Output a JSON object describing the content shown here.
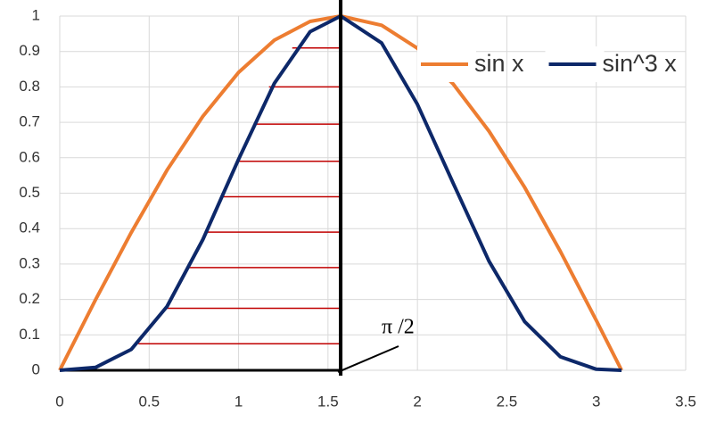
{
  "chart_data": {
    "type": "line",
    "x": [
      0,
      0.2,
      0.4,
      0.6,
      0.8,
      1.0,
      1.2,
      1.4,
      1.5708,
      1.8,
      2.0,
      2.2,
      2.4,
      2.6,
      2.8,
      3.0,
      3.1416
    ],
    "series": [
      {
        "name": "sin x",
        "color": "#ed7d31",
        "values": [
          0,
          0.199,
          0.389,
          0.565,
          0.717,
          0.841,
          0.932,
          0.985,
          1.0,
          0.974,
          0.909,
          0.808,
          0.675,
          0.516,
          0.335,
          0.141,
          0
        ]
      },
      {
        "name": "sin^3 x",
        "color": "#0d2869",
        "values": [
          0,
          0.008,
          0.059,
          0.18,
          0.369,
          0.596,
          0.81,
          0.956,
          1.0,
          0.924,
          0.751,
          0.528,
          0.308,
          0.137,
          0.038,
          0.003,
          0
        ]
      }
    ],
    "xlim": [
      0,
      3.5
    ],
    "xticks": [
      0,
      0.5,
      1,
      1.5,
      2,
      2.5,
      3,
      3.5
    ],
    "ylim": [
      0,
      1
    ],
    "yticks": [
      0,
      0.1,
      0.2,
      0.3,
      0.4,
      0.5,
      0.6,
      0.7,
      0.8,
      0.9,
      1
    ],
    "grid": true,
    "legend": "upper right",
    "vline": {
      "x": 1.5708,
      "color": "#000000"
    },
    "hlines": {
      "color": "#c00000",
      "items": [
        {
          "y": 0.075,
          "x": [
            0.44,
            1.5708
          ]
        },
        {
          "y": 0.175,
          "x": [
            0.59,
            1.5708
          ]
        },
        {
          "y": 0.29,
          "x": [
            0.72,
            1.5708
          ]
        },
        {
          "y": 0.39,
          "x": [
            0.81,
            1.5708
          ]
        },
        {
          "y": 0.49,
          "x": [
            0.9,
            1.5708
          ]
        },
        {
          "y": 0.59,
          "x": [
            0.99,
            1.5708
          ]
        },
        {
          "y": 0.695,
          "x": [
            1.09,
            1.5708
          ]
        },
        {
          "y": 0.8,
          "x": [
            1.17,
            1.5708
          ]
        },
        {
          "y": 0.91,
          "x": [
            1.3,
            1.5708
          ]
        }
      ]
    },
    "annotation": "π /2"
  }
}
